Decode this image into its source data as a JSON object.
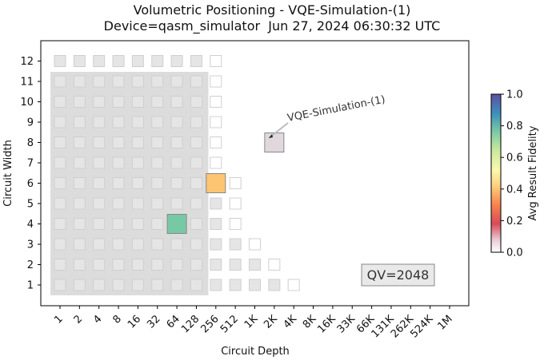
{
  "title_line1": "Volumetric Positioning - VQE-Simulation-(1)",
  "title_line2": "Device=qasm_simulator  Jun 27, 2024 06:30:32 UTC",
  "chart_data": {
    "type": "heatmap",
    "xlabel": "Circuit Depth",
    "ylabel": "Circuit Width",
    "x_ticks": [
      "1",
      "2",
      "4",
      "8",
      "16",
      "32",
      "64",
      "128",
      "256",
      "512",
      "1K",
      "2K",
      "4K",
      "8K",
      "16K",
      "33K",
      "66K",
      "131K",
      "262K",
      "524K",
      "1M"
    ],
    "y_ticks": [
      "1",
      "2",
      "3",
      "4",
      "5",
      "6",
      "7",
      "8",
      "9",
      "10",
      "11",
      "12"
    ],
    "qv_label": "QV=2048",
    "annotation": "VQE-Simulation-(1)",
    "annotated_point": {
      "depth_index": 11,
      "width": 8
    },
    "qv_region": {
      "max_depth_index": 7,
      "max_width": 11
    },
    "grid_cells": {
      "per_width_max_depth_index": {
        "1": 12,
        "2": 11,
        "3": 10,
        "4": 9,
        "5": 9,
        "6": 9,
        "7": 8,
        "8": 8,
        "9": 8,
        "10": 8,
        "11": 8,
        "12": 8
      },
      "filled_cells": {
        "1": 11,
        "2": 10,
        "3": 9,
        "4": 8,
        "5": 8,
        "6": 8,
        "7": 7,
        "8": 7,
        "9": 7,
        "10": 7,
        "11": 7,
        "12": 7
      }
    },
    "results": [
      {
        "depth_index": 8,
        "width": 6,
        "fidelity": 0.4,
        "color": "#fdc572"
      },
      {
        "depth_index": 6,
        "width": 4,
        "fidelity": 0.8,
        "color": "#77c9a5"
      },
      {
        "depth_index": 11,
        "width": 8,
        "fidelity": 0.02,
        "color": "#e0d8dc"
      }
    ],
    "colorbar": {
      "label": "Avg Result Fidelity",
      "ticks": [
        "0.0",
        "0.2",
        "0.4",
        "0.6",
        "0.8",
        "1.0"
      ],
      "range": [
        0.0,
        1.0
      ],
      "colormap": "Spectral"
    }
  }
}
